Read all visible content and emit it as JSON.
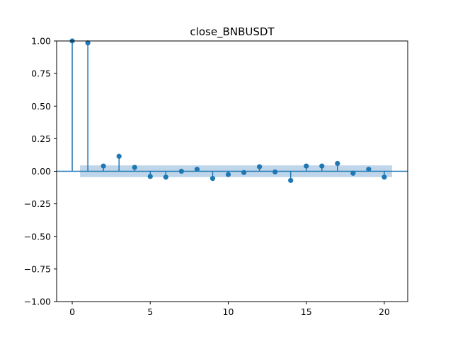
{
  "chart_data": {
    "type": "scatter",
    "subtype": "stem",
    "title": "close_BNBUSDT",
    "xlabel": "",
    "ylabel": "",
    "xlim": [
      -1,
      21.5
    ],
    "ylim": [
      -1.0,
      1.0
    ],
    "grid": false,
    "legend": "none",
    "xticks": [
      0,
      5,
      10,
      15,
      20
    ],
    "xtick_labels": [
      "0",
      "5",
      "10",
      "15",
      "20"
    ],
    "yticks": [
      -1.0,
      -0.75,
      -0.5,
      -0.25,
      0.0,
      0.25,
      0.5,
      0.75,
      1.0
    ],
    "ytick_labels": [
      "−1.00",
      "−0.75",
      "−0.50",
      "−0.25",
      "0.00",
      "0.25",
      "0.50",
      "0.75",
      "1.00"
    ],
    "series": [
      {
        "lags": [
          0,
          1,
          2,
          3,
          4,
          5,
          6,
          7,
          8,
          9,
          10,
          11,
          12,
          13,
          14,
          15,
          16,
          17,
          18,
          19,
          20
        ],
        "values": [
          1.0,
          0.985,
          0.04,
          0.115,
          0.03,
          -0.04,
          -0.045,
          0.0,
          0.015,
          -0.055,
          -0.025,
          -0.01,
          0.035,
          -0.005,
          -0.07,
          0.04,
          0.04,
          0.06,
          -0.015,
          0.015,
          -0.045
        ]
      }
    ],
    "confidence_band": {
      "x_range": [
        0.5,
        20.5
      ],
      "lower": -0.045,
      "upper": 0.045
    },
    "colors": {
      "stem": "#1f77b4",
      "marker": "#1f77b4",
      "band": "#a9c8e3",
      "zero_line": "#1f77b4"
    }
  }
}
